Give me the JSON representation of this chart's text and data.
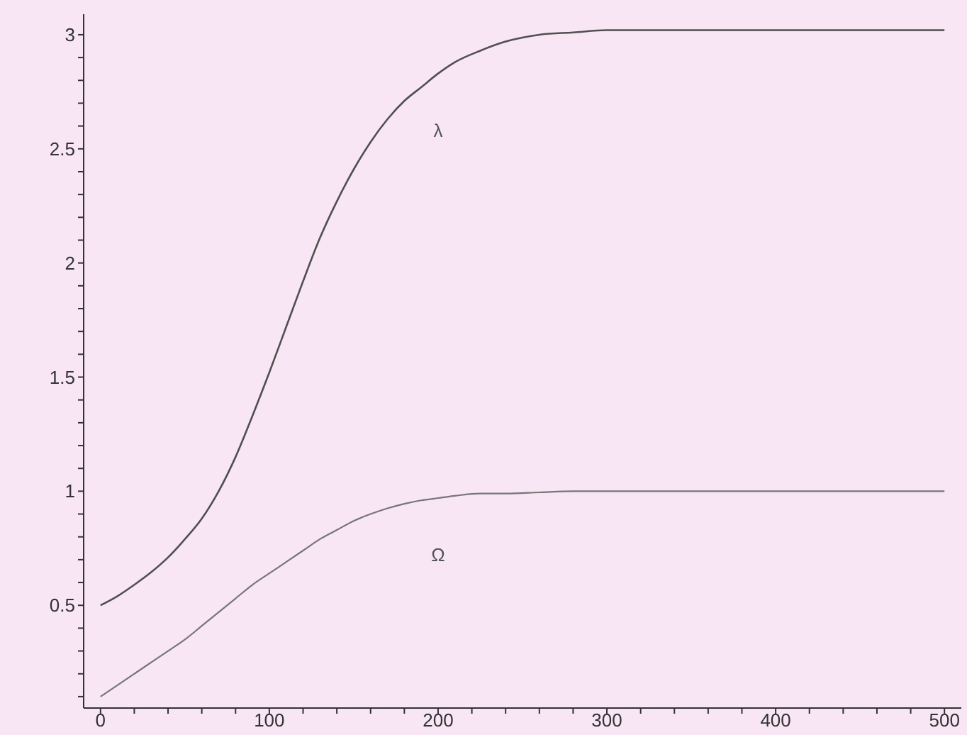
{
  "chart_data": {
    "type": "line",
    "x": [
      0,
      10,
      20,
      30,
      40,
      50,
      60,
      70,
      80,
      90,
      100,
      110,
      120,
      130,
      140,
      150,
      160,
      170,
      180,
      190,
      200,
      210,
      225,
      240,
      260,
      280,
      300,
      350,
      400,
      450,
      500
    ],
    "series": [
      {
        "name": "λ",
        "color": "#505050",
        "values": [
          0.5,
          0.54,
          0.59,
          0.645,
          0.71,
          0.79,
          0.88,
          1.0,
          1.15,
          1.33,
          1.52,
          1.72,
          1.92,
          2.11,
          2.27,
          2.41,
          2.53,
          2.63,
          2.71,
          2.77,
          2.83,
          2.88,
          2.93,
          2.97,
          3.0,
          3.01,
          3.02,
          3.02,
          3.02,
          3.02,
          3.02
        ]
      },
      {
        "name": "Ω",
        "color": "#767676",
        "values": [
          0.1,
          0.15,
          0.2,
          0.25,
          0.3,
          0.35,
          0.41,
          0.47,
          0.53,
          0.59,
          0.64,
          0.69,
          0.74,
          0.79,
          0.83,
          0.87,
          0.9,
          0.925,
          0.945,
          0.96,
          0.97,
          0.98,
          0.99,
          0.99,
          0.995,
          1.0,
          1.0,
          1.0,
          1.0,
          1.0,
          1.0
        ]
      }
    ],
    "xlim": [
      -10,
      510
    ],
    "ylim": [
      0.05,
      3.09
    ],
    "xticks": [
      0,
      {
        "value": 20,
        "label": null
      },
      {
        "value": 40,
        "label": null
      },
      {
        "value": 60,
        "label": null
      },
      {
        "value": 80,
        "label": null
      },
      100,
      {
        "value": 120,
        "label": null
      },
      {
        "value": 140,
        "label": null
      },
      {
        "value": 160,
        "label": null
      },
      {
        "value": 180,
        "label": null
      },
      200,
      {
        "value": 220,
        "label": null
      },
      {
        "value": 240,
        "label": null
      },
      {
        "value": 260,
        "label": null
      },
      {
        "value": 280,
        "label": null
      },
      300,
      {
        "value": 320,
        "label": null
      },
      {
        "value": 340,
        "label": null
      },
      {
        "value": 360,
        "label": null
      },
      {
        "value": 380,
        "label": null
      },
      400,
      {
        "value": 420,
        "label": null
      },
      {
        "value": 440,
        "label": null
      },
      {
        "value": 460,
        "label": null
      },
      {
        "value": 480,
        "label": null
      },
      500
    ],
    "yticks": [
      {
        "value": 0.1,
        "label": null
      },
      {
        "value": 0.2,
        "label": null
      },
      {
        "value": 0.3,
        "label": null
      },
      {
        "value": 0.4,
        "label": null
      },
      0.5,
      {
        "value": 0.6,
        "label": null
      },
      {
        "value": 0.7,
        "label": null
      },
      {
        "value": 0.8,
        "label": null
      },
      {
        "value": 0.9,
        "label": null
      },
      1,
      {
        "value": 1.1,
        "label": null
      },
      {
        "value": 1.2,
        "label": null
      },
      {
        "value": 1.3,
        "label": null
      },
      {
        "value": 1.4,
        "label": null
      },
      1.5,
      {
        "value": 1.6,
        "label": null
      },
      {
        "value": 1.7,
        "label": null
      },
      {
        "value": 1.8,
        "label": null
      },
      {
        "value": 1.9,
        "label": null
      },
      2,
      {
        "value": 2.1,
        "label": null
      },
      {
        "value": 2.2,
        "label": null
      },
      {
        "value": 2.3,
        "label": null
      },
      {
        "value": 2.4,
        "label": null
      },
      2.5,
      {
        "value": 2.6,
        "label": null
      },
      {
        "value": 2.7,
        "label": null
      },
      {
        "value": 2.8,
        "label": null
      },
      {
        "value": 2.9,
        "label": null
      },
      3
    ]
  }
}
